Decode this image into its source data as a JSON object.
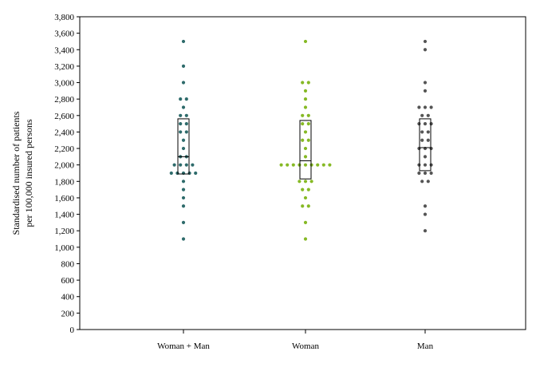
{
  "chart_data": {
    "type": "scatter",
    "subtype": "strip plot with box",
    "title": "",
    "ylabel_lines": [
      "Standardised number of patients",
      "per 100,000 insured persons"
    ],
    "xlabel": "",
    "ylim": [
      0,
      3800
    ],
    "ytick_step": 200,
    "grid": false,
    "legend": "none",
    "categories": [
      "Woman + Man",
      "Woman",
      "Man"
    ],
    "series": [
      {
        "category": "Woman + Man",
        "color": "#2e6b6b",
        "values": [
          3500,
          3200,
          3000,
          2800,
          2800,
          2700,
          2600,
          2600,
          2500,
          2500,
          2400,
          2400,
          2300,
          2200,
          2100,
          2100,
          2000,
          2000,
          2000,
          2000,
          1900,
          1900,
          1900,
          1900,
          1900,
          1800,
          1700,
          1600,
          1500,
          1300,
          1100
        ],
        "box": {
          "q1": 1890,
          "median": 2100,
          "q3": 2560
        }
      },
      {
        "category": "Woman",
        "color": "#86b925",
        "values": [
          3500,
          3000,
          3000,
          2900,
          2800,
          2700,
          2600,
          2600,
          2500,
          2500,
          2400,
          2300,
          2300,
          2200,
          2100,
          2000,
          2000,
          2000,
          2000,
          2000,
          2000,
          2000,
          2000,
          2000,
          1800,
          1800,
          1800,
          1700,
          1700,
          1600,
          1500,
          1500,
          1300,
          1100
        ],
        "box": {
          "q1": 1830,
          "median": 2050,
          "q3": 2540
        }
      },
      {
        "category": "Man",
        "color": "#555555",
        "values": [
          3500,
          3400,
          3000,
          2900,
          2700,
          2700,
          2700,
          2600,
          2600,
          2500,
          2500,
          2500,
          2400,
          2400,
          2300,
          2300,
          2200,
          2200,
          2200,
          2100,
          2000,
          2000,
          2000,
          1900,
          1900,
          1900,
          1800,
          1800,
          1500,
          1400,
          1200
        ],
        "box": {
          "q1": 1930,
          "median": 2210,
          "q3": 2560
        }
      }
    ]
  }
}
